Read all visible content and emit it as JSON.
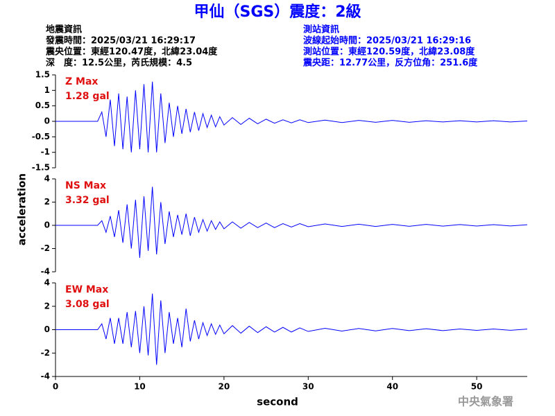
{
  "title": "甲仙（SGS）震度：2級",
  "event_info": [
    "地震資訊",
    "發震時間：2025/03/21 16:29:17",
    "震央位置：東經120.47度，北緯23.04度",
    "深　度：12.5公里，芮氏規模：4.5"
  ],
  "station_info": [
    "測站資訊",
    "波線起始時間：2025/03/21 16:29:16",
    "測站位置：東經120.59度，北緯23.08度",
    "震央距：12.77公里，反方位角：251.6度"
  ],
  "ylabel": "acceleration",
  "xlabel": "second",
  "footer": "中央氣象署",
  "chart_data": [
    {
      "type": "line",
      "annotation": [
        "Z Max",
        "1.28 gal"
      ],
      "color": "#0000ff",
      "xlim": [
        0,
        56
      ],
      "ylim": [
        -1.5,
        1.5
      ],
      "yticks": [
        1.5,
        1,
        0.5,
        0,
        -0.5,
        -1,
        -1.5
      ],
      "x": [
        0,
        5,
        5.5,
        6,
        6.5,
        7,
        7.5,
        8,
        8.5,
        9,
        9.5,
        10,
        10.5,
        11,
        11.5,
        12,
        12.5,
        13,
        13.5,
        14,
        14.5,
        15,
        15.5,
        16,
        16.5,
        17,
        17.5,
        18,
        18.5,
        19,
        19.5,
        20,
        21,
        22,
        23,
        24,
        25,
        26,
        27,
        28,
        29,
        30,
        32,
        34,
        36,
        38,
        40,
        42,
        44,
        46,
        48,
        50,
        52,
        54,
        56
      ],
      "values": [
        0,
        0,
        0.3,
        -0.5,
        0.7,
        -0.8,
        0.9,
        -0.9,
        0.8,
        -1.0,
        1.0,
        -0.9,
        1.2,
        -1.0,
        1.28,
        -1.0,
        0.9,
        -0.7,
        0.6,
        -0.5,
        0.5,
        -0.4,
        0.4,
        -0.35,
        0.3,
        -0.3,
        0.25,
        -0.2,
        0.2,
        -0.18,
        0.15,
        -0.12,
        0.12,
        -0.1,
        0.1,
        -0.08,
        0.07,
        -0.06,
        0.05,
        -0.05,
        0.05,
        -0.04,
        0.04,
        -0.04,
        0.03,
        -0.03,
        0.03,
        -0.03,
        0.02,
        -0.02,
        0.02,
        -0.02,
        0.02,
        -0.02,
        0.01
      ]
    },
    {
      "type": "line",
      "annotation": [
        "NS Max",
        "3.32 gal"
      ],
      "color": "#0000ff",
      "xlim": [
        0,
        56
      ],
      "ylim": [
        -4,
        4
      ],
      "yticks": [
        4,
        2,
        0,
        -2,
        -4
      ],
      "x": [
        0,
        5,
        5.5,
        6,
        6.5,
        7,
        7.5,
        8,
        8.5,
        9,
        9.5,
        10,
        10.5,
        11,
        11.5,
        12,
        12.5,
        13,
        13.5,
        14,
        14.5,
        15,
        15.5,
        16,
        16.5,
        17,
        17.5,
        18,
        18.5,
        19,
        19.5,
        20,
        21,
        22,
        23,
        24,
        25,
        26,
        27,
        28,
        29,
        30,
        32,
        34,
        36,
        38,
        40,
        42,
        44,
        46,
        48,
        50,
        52,
        54,
        56
      ],
      "values": [
        0,
        0,
        0.4,
        -0.6,
        0.8,
        -1.0,
        1.3,
        -1.5,
        1.8,
        -2.0,
        2.2,
        -2.8,
        2.5,
        -2.2,
        3.32,
        -2.5,
        2.0,
        -1.6,
        1.2,
        -1.0,
        0.9,
        -0.8,
        1.0,
        -0.9,
        0.7,
        -0.6,
        0.5,
        -0.5,
        0.4,
        -0.35,
        0.3,
        -0.3,
        0.3,
        -0.25,
        0.25,
        -0.2,
        0.2,
        -0.2,
        0.15,
        -0.15,
        0.15,
        -0.12,
        0.12,
        -0.1,
        0.1,
        -0.1,
        0.08,
        -0.08,
        0.08,
        -0.07,
        0.07,
        -0.06,
        0.06,
        -0.05,
        0.05
      ]
    },
    {
      "type": "line",
      "annotation": [
        "EW Max",
        "3.08 gal"
      ],
      "color": "#0000ff",
      "xlim": [
        0,
        56
      ],
      "ylim": [
        -4,
        4
      ],
      "yticks": [
        4,
        2,
        0,
        -2,
        -4
      ],
      "xticks": [
        0,
        10,
        20,
        30,
        40,
        50
      ],
      "x": [
        0,
        5,
        5.5,
        6,
        6.5,
        7,
        7.5,
        8,
        8.5,
        9,
        9.5,
        10,
        10.5,
        11,
        11.5,
        12,
        12.5,
        13,
        13.5,
        14,
        14.5,
        15,
        15.5,
        16,
        16.5,
        17,
        17.5,
        18,
        18.5,
        19,
        19.5,
        20,
        21,
        22,
        23,
        24,
        25,
        26,
        27,
        28,
        29,
        30,
        32,
        34,
        36,
        38,
        40,
        42,
        44,
        46,
        48,
        50,
        52,
        54,
        56
      ],
      "values": [
        0,
        0,
        0.5,
        -0.8,
        1.0,
        -1.2,
        1.0,
        -1.2,
        1.5,
        -1.5,
        1.6,
        -2.0,
        2.0,
        -2.2,
        3.08,
        -3.0,
        2.5,
        -2.0,
        1.5,
        -1.2,
        1.0,
        -1.5,
        1.8,
        -1.0,
        0.8,
        -0.8,
        0.6,
        -0.5,
        0.5,
        -0.4,
        0.4,
        -0.35,
        0.35,
        -0.3,
        0.3,
        -0.25,
        0.25,
        -0.2,
        0.2,
        -0.2,
        0.15,
        -0.15,
        0.12,
        -0.12,
        0.1,
        -0.1,
        0.1,
        -0.08,
        0.08,
        -0.08,
        0.06,
        -0.06,
        0.06,
        -0.05,
        0.05
      ]
    }
  ]
}
